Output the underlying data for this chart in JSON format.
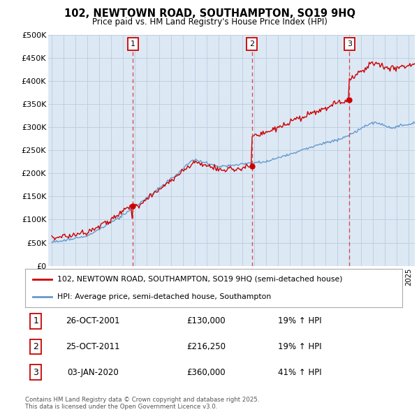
{
  "title": "102, NEWTOWN ROAD, SOUTHAMPTON, SO19 9HQ",
  "subtitle": "Price paid vs. HM Land Registry's House Price Index (HPI)",
  "bg_color": "#dce9f5",
  "ylim": [
    0,
    500000
  ],
  "yticks": [
    0,
    50000,
    100000,
    150000,
    200000,
    250000,
    300000,
    350000,
    400000,
    450000,
    500000
  ],
  "ytick_labels": [
    "£0",
    "£50K",
    "£100K",
    "£150K",
    "£200K",
    "£250K",
    "£300K",
    "£350K",
    "£400K",
    "£450K",
    "£500K"
  ],
  "sale_years": [
    2001.82,
    2011.82,
    2020.01
  ],
  "sale_prices": [
    130000,
    216250,
    360000
  ],
  "sale_labels": [
    "1",
    "2",
    "3"
  ],
  "sale_pct": [
    "19% ↑ HPI",
    "19% ↑ HPI",
    "41% ↑ HPI"
  ],
  "sale_date_labels": [
    "26-OCT-2001",
    "25-OCT-2011",
    "03-JAN-2020"
  ],
  "sale_price_labels": [
    "£130,000",
    "£216,250",
    "£360,000"
  ],
  "legend_line1": "102, NEWTOWN ROAD, SOUTHAMPTON, SO19 9HQ (semi-detached house)",
  "legend_line2": "HPI: Average price, semi-detached house, Southampton",
  "footer": "Contains HM Land Registry data © Crown copyright and database right 2025.\nThis data is licensed under the Open Government Licence v3.0.",
  "line_color_price": "#cc0000",
  "line_color_hpi": "#6699cc",
  "vline_color": "#dd3333",
  "grid_color": "#c0cfe0"
}
